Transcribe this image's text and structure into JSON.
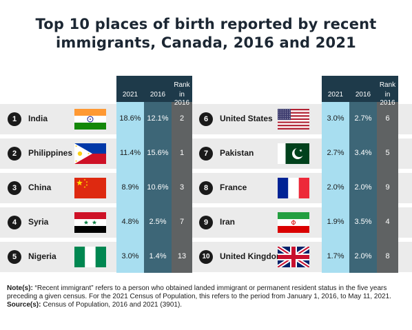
{
  "title_lines": [
    "Top 10 places of birth reported by recent",
    "immigrants, Canada, 2016 and 2021"
  ],
  "headers": {
    "y2021": "2021",
    "y2016": "2016",
    "rank_line1": "Rank",
    "rank_line2": "in 2016"
  },
  "chart_data": {
    "type": "table",
    "columns": [
      "2021",
      "2016",
      "Rank in 2016"
    ],
    "rows": [
      {
        "rank": "1",
        "country": "India",
        "flag": "india-flag",
        "y2021": "18.6%",
        "y2016": "12.1%",
        "rank2016": "2"
      },
      {
        "rank": "2",
        "country": "Philippines",
        "flag": "philippines-flag",
        "y2021": "11.4%",
        "y2016": "15.6%",
        "rank2016": "1"
      },
      {
        "rank": "3",
        "country": "China",
        "flag": "china-flag",
        "y2021": "8.9%",
        "y2016": "10.6%",
        "rank2016": "3"
      },
      {
        "rank": "4",
        "country": "Syria",
        "flag": "syria-flag",
        "y2021": "4.8%",
        "y2016": "2.5%",
        "rank2016": "7"
      },
      {
        "rank": "5",
        "country": "Nigeria",
        "flag": "nigeria-flag",
        "y2021": "3.0%",
        "y2016": "1.4%",
        "rank2016": "13"
      },
      {
        "rank": "6",
        "country": "United States",
        "flag": "usa-flag",
        "y2021": "3.0%",
        "y2016": "2.7%",
        "rank2016": "6"
      },
      {
        "rank": "7",
        "country": "Pakistan",
        "flag": "pakistan-flag",
        "y2021": "2.7%",
        "y2016": "3.4%",
        "rank2016": "5"
      },
      {
        "rank": "8",
        "country": "France",
        "flag": "france-flag",
        "y2021": "2.0%",
        "y2016": "2.0%",
        "rank2016": "9"
      },
      {
        "rank": "9",
        "country": "Iran",
        "flag": "iran-flag",
        "y2021": "1.9%",
        "y2016": "3.5%",
        "rank2016": "4"
      },
      {
        "rank": "10",
        "country": "United Kingdom",
        "flag": "uk-flag",
        "y2021": "1.7%",
        "y2016": "2.0%",
        "rank2016": "8"
      }
    ]
  },
  "notes": {
    "note_label": "Note(s):",
    "note_text": " “Recent immigrant” refers to a person who obtained landed immigrant or permanent resident status in the five years preceding a given census. For the 2021 Census of Population, this refers to the period from January 1, 2016, to May 11, 2021.",
    "source_label": "Source(s):",
    "source_text": " Census of Population, 2016 and 2021 (3901)."
  },
  "colors": {
    "col_2021": "#a8def0",
    "col_2016": "#3d6677",
    "col_rank": "#5f6263",
    "header": "#1e3a4a",
    "band": "#ebebeb"
  }
}
